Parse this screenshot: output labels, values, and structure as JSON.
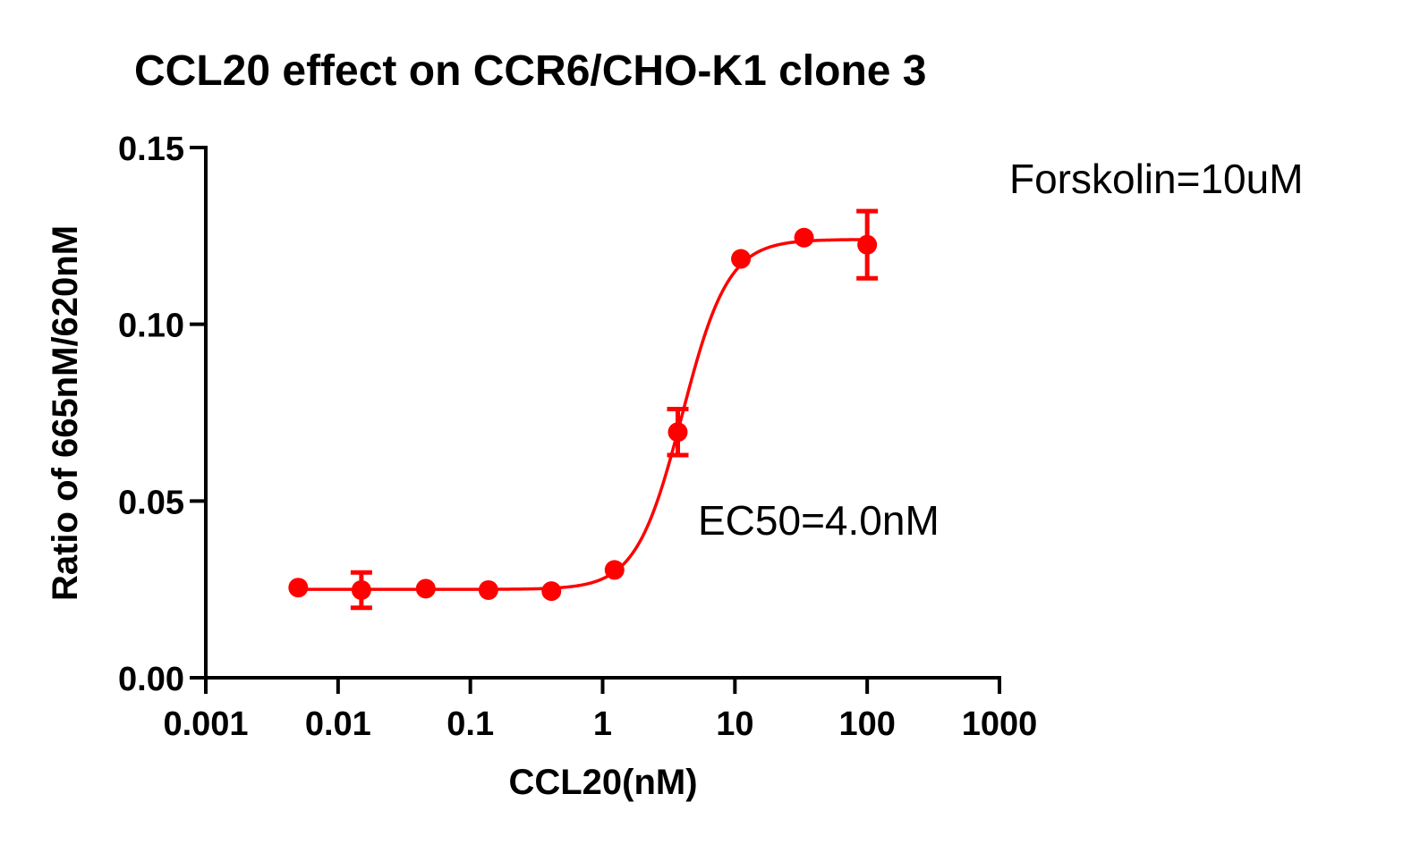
{
  "chart_data": {
    "type": "scatter",
    "title": "CCL20 effect on CCR6/CHO-K1 clone 3",
    "xlabel": "CCL20(nM)",
    "ylabel": "Ratio of 665nM/620nM",
    "x_scale": "log",
    "xlim": [
      0.001,
      1000
    ],
    "ylim": [
      0.0,
      0.15
    ],
    "x_ticks": [
      0.001,
      0.01,
      0.1,
      1,
      10,
      100,
      1000
    ],
    "x_tick_labels": [
      "0.001",
      "0.01",
      "0.1",
      "1",
      "10",
      "100",
      "1000"
    ],
    "y_ticks": [
      0.0,
      0.05,
      0.1,
      0.15
    ],
    "y_tick_labels": [
      "0.00",
      "0.05",
      "0.10",
      "0.15"
    ],
    "grid": false,
    "series_color": "#ff0000",
    "series": [
      {
        "x": [
          0.005,
          0.015,
          0.046,
          0.137,
          0.41,
          1.23,
          3.7,
          11.1,
          33.3,
          100
        ],
        "y": [
          0.0255,
          0.0248,
          0.0252,
          0.0248,
          0.0245,
          0.0305,
          0.0695,
          0.1185,
          0.1245,
          0.1225
        ],
        "error": [
          0.0,
          0.005,
          0.0,
          0.0,
          0.0,
          0.0,
          0.0065,
          0.0,
          0.0,
          0.0095
        ]
      }
    ],
    "fit": {
      "type": "four-parameter logistic",
      "bottom": 0.025,
      "top": 0.124,
      "ec50": 4.0,
      "hill": 2.5,
      "x_range": [
        0.005,
        100
      ]
    },
    "annotations": [
      {
        "text": "Forskolin=10uM"
      },
      {
        "text": "EC50=4.0nM"
      }
    ]
  }
}
